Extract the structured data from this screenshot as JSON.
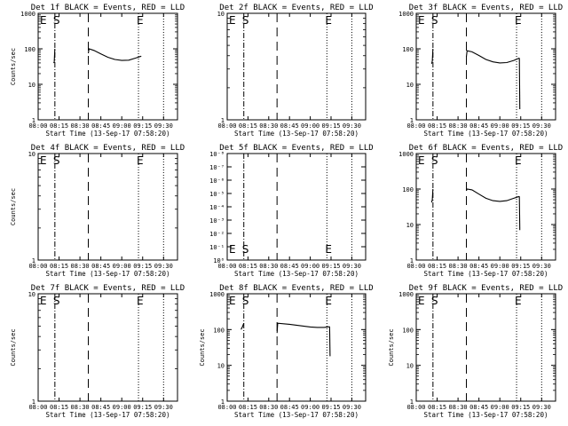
{
  "chart_data": [
    {
      "type": "line",
      "title": "Det 1f BLACK = Events, RED = LLD",
      "ylabel": "Counts/sec",
      "xlabel": "Start Time (13-Sep-17 07:58:20)",
      "yscale": "log",
      "ylim": [
        1,
        1000
      ],
      "xlim": [
        "08:00",
        "09:40"
      ],
      "yticks": [
        "1",
        "10",
        "100",
        "1000"
      ],
      "xticks": [
        "08:00",
        "08:15",
        "08:30",
        "08:45",
        "09:00",
        "09:15",
        "09:30"
      ],
      "markers": [
        {
          "label": "E",
          "x": "08:01"
        },
        {
          "label": "S",
          "x": "08:12"
        },
        {
          "label": "E",
          "x": "09:12"
        }
      ],
      "series": [
        {
          "color": "#000000",
          "segments": [
            [
              [
                "08:11",
                40
              ],
              [
                "08:11.5",
                42
              ],
              [
                "08:12",
                100
              ]
            ],
            [
              [
                "08:36",
                75
              ],
              [
                "08:36.5",
                100
              ],
              [
                "08:40",
                90
              ],
              [
                "08:45",
                72
              ],
              [
                "08:50",
                58
              ],
              [
                "08:55",
                50
              ],
              [
                "09:00",
                47
              ],
              [
                "09:05",
                48
              ],
              [
                "09:10",
                55
              ],
              [
                "09:14",
                62
              ]
            ]
          ]
        }
      ]
    },
    {
      "type": "line",
      "title": "Det 2f BLACK = Events, RED = LLD",
      "ylabel": "",
      "xlabel": "Start Time (13-Sep-17 07:58:20)",
      "yscale": "log",
      "ylim": [
        1,
        10
      ],
      "xlim": [
        "08:00",
        "09:40"
      ],
      "yticks": [
        "1",
        "10"
      ],
      "xticks": [
        "08:00",
        "08:15",
        "08:30",
        "08:45",
        "09:00",
        "09:15",
        "09:30"
      ],
      "markers": [
        {
          "label": "E",
          "x": "08:01"
        },
        {
          "label": "S",
          "x": "08:12"
        },
        {
          "label": "E",
          "x": "09:12"
        }
      ],
      "series": []
    },
    {
      "type": "line",
      "title": "Det 3f BLACK = Events, RED = LLD",
      "ylabel": "",
      "xlabel": "Start Time (13-Sep-17 07:58:20)",
      "yscale": "log",
      "ylim": [
        1,
        1000
      ],
      "xlim": [
        "08:00",
        "09:40"
      ],
      "yticks": [
        "1",
        "10",
        "100",
        "1000"
      ],
      "xticks": [
        "08:00",
        "08:15",
        "08:30",
        "08:45",
        "09:00",
        "09:15",
        "09:30"
      ],
      "markers": [
        {
          "label": "E",
          "x": "08:01"
        },
        {
          "label": "S",
          "x": "08:12"
        },
        {
          "label": "E",
          "x": "09:12"
        }
      ],
      "series": [
        {
          "color": "#000000",
          "segments": [
            [
              [
                "08:11",
                38
              ],
              [
                "08:11.5",
                45
              ],
              [
                "08:12",
                100
              ]
            ],
            [
              [
                "08:36",
                60
              ],
              [
                "08:36.5",
                88
              ],
              [
                "08:40",
                82
              ],
              [
                "08:45",
                65
              ],
              [
                "08:50",
                50
              ],
              [
                "08:55",
                43
              ],
              [
                "09:00",
                40
              ],
              [
                "09:05",
                41
              ],
              [
                "09:10",
                47
              ],
              [
                "09:14",
                55
              ]
            ],
            [
              [
                "09:14",
                55
              ],
              [
                "09:14.3",
                2
              ]
            ]
          ]
        }
      ]
    },
    {
      "type": "line",
      "title": "Det 4f BLACK = Events, RED = LLD",
      "ylabel": "Counts/sec",
      "xlabel": "Start Time (13-Sep-17 07:58:20)",
      "yscale": "log",
      "ylim": [
        1,
        10
      ],
      "xlim": [
        "08:00",
        "09:40"
      ],
      "yticks": [
        "1",
        "10"
      ],
      "xticks": [
        "08:00",
        "08:15",
        "08:30",
        "08:45",
        "09:00",
        "09:15",
        "09:30"
      ],
      "markers": [
        {
          "label": "E",
          "x": "08:01"
        },
        {
          "label": "S",
          "x": "08:12"
        },
        {
          "label": "E",
          "x": "09:12"
        }
      ],
      "series": []
    },
    {
      "type": "line",
      "title": "Det 5f BLACK = Events, RED = LLD",
      "ylabel": "",
      "xlabel": "Start Time (13-Sep-17 07:58:20)",
      "yscale": "log",
      "ylim": [
        1,
        1e-08
      ],
      "xlim": [
        "08:00",
        "09:40"
      ],
      "yticks": [
        "10⁰",
        "10⁻¹",
        "10⁻²",
        "10⁻³",
        "10⁻⁴",
        "10⁻⁵",
        "10⁻⁶",
        "10⁻⁷",
        "10⁻⁸"
      ],
      "xticks": [
        "08:00",
        "08:15",
        "08:30",
        "08:45",
        "09:00",
        "09:15",
        "09:30"
      ],
      "markers": [
        {
          "label": "E",
          "x": "08:01"
        },
        {
          "label": "S",
          "x": "08:12"
        },
        {
          "label": "E",
          "x": "09:12"
        }
      ],
      "series": []
    },
    {
      "type": "line",
      "title": "Det 6f BLACK = Events, RED = LLD",
      "ylabel": "",
      "xlabel": "Start Time (13-Sep-17 07:58:20)",
      "yscale": "log",
      "ylim": [
        1,
        1000
      ],
      "xlim": [
        "08:00",
        "09:40"
      ],
      "yticks": [
        "1",
        "10",
        "100",
        "1000"
      ],
      "xticks": [
        "08:00",
        "08:15",
        "08:30",
        "08:45",
        "09:00",
        "09:15",
        "09:30"
      ],
      "markers": [
        {
          "label": "E",
          "x": "08:01"
        },
        {
          "label": "S",
          "x": "08:12"
        },
        {
          "label": "E",
          "x": "09:12"
        }
      ],
      "series": [
        {
          "color": "#000000",
          "segments": [
            [
              [
                "08:11",
                42
              ],
              [
                "08:11.5",
                50
              ],
              [
                "08:12",
                100
              ]
            ],
            [
              [
                "08:36",
                90
              ],
              [
                "08:36.5",
                100
              ],
              [
                "08:40",
                95
              ],
              [
                "08:45",
                72
              ],
              [
                "08:50",
                55
              ],
              [
                "08:55",
                47
              ],
              [
                "09:00",
                45
              ],
              [
                "09:05",
                47
              ],
              [
                "09:10",
                55
              ],
              [
                "09:14",
                62
              ]
            ],
            [
              [
                "09:14",
                62
              ],
              [
                "09:14.3",
                7
              ]
            ]
          ]
        }
      ]
    },
    {
      "type": "line",
      "title": "Det 7f BLACK = Events, RED = LLD",
      "ylabel": "Counts/sec",
      "xlabel": "Start Time (13-Sep-17 07:58:20)",
      "yscale": "log",
      "ylim": [
        1,
        10
      ],
      "xlim": [
        "08:00",
        "09:40"
      ],
      "yticks": [
        "1",
        "10"
      ],
      "xticks": [
        "08:00",
        "08:15",
        "08:30",
        "08:45",
        "09:00",
        "09:15",
        "09:30"
      ],
      "markers": [
        {
          "label": "E",
          "x": "08:01"
        },
        {
          "label": "S",
          "x": "08:12"
        },
        {
          "label": "E",
          "x": "09:12"
        }
      ],
      "series": []
    },
    {
      "type": "line",
      "title": "Det 8f BLACK = Events, RED = LLD",
      "ylabel": "Counts/sec",
      "xlabel": "Start Time (13-Sep-17 07:58:20)",
      "yscale": "log",
      "ylim": [
        1,
        1000
      ],
      "xlim": [
        "08:00",
        "09:40"
      ],
      "yticks": [
        "1",
        "10",
        "100",
        "1000"
      ],
      "xticks": [
        "08:00",
        "08:15",
        "08:30",
        "08:45",
        "09:00",
        "09:15",
        "09:30"
      ],
      "markers": [
        {
          "label": "E",
          "x": "08:01"
        },
        {
          "label": "S",
          "x": "08:12"
        },
        {
          "label": "E",
          "x": "09:12"
        }
      ],
      "series": [
        {
          "color": "#000000",
          "segments": [
            [
              [
                "08:10",
                100
              ],
              [
                "08:11",
                120
              ],
              [
                "08:12",
                150
              ]
            ],
            [
              [
                "08:36",
                80
              ],
              [
                "08:36.5",
                150
              ],
              [
                "08:45",
                140
              ],
              [
                "08:55",
                125
              ],
              [
                "09:00",
                118
              ],
              [
                "09:05",
                115
              ],
              [
                "09:10",
                115
              ],
              [
                "09:14",
                120
              ]
            ],
            [
              [
                "09:14",
                120
              ],
              [
                "09:14.3",
                18
              ]
            ]
          ]
        }
      ]
    },
    {
      "type": "line",
      "title": "Det 9f BLACK = Events, RED = LLD",
      "ylabel": "Counts/sec",
      "xlabel": "Start Time (13-Sep-17 07:58:20)",
      "yscale": "log",
      "ylim": [
        1,
        1000
      ],
      "xlim": [
        "08:00",
        "09:40"
      ],
      "yticks": [
        "1",
        "10",
        "100",
        "1000"
      ],
      "xticks": [
        "08:00",
        "08:15",
        "08:30",
        "08:45",
        "09:00",
        "09:15",
        "09:30"
      ],
      "markers": [
        {
          "label": "E",
          "x": "08:01"
        },
        {
          "label": "S",
          "x": "08:12"
        },
        {
          "label": "E",
          "x": "09:12"
        }
      ],
      "series": []
    }
  ]
}
